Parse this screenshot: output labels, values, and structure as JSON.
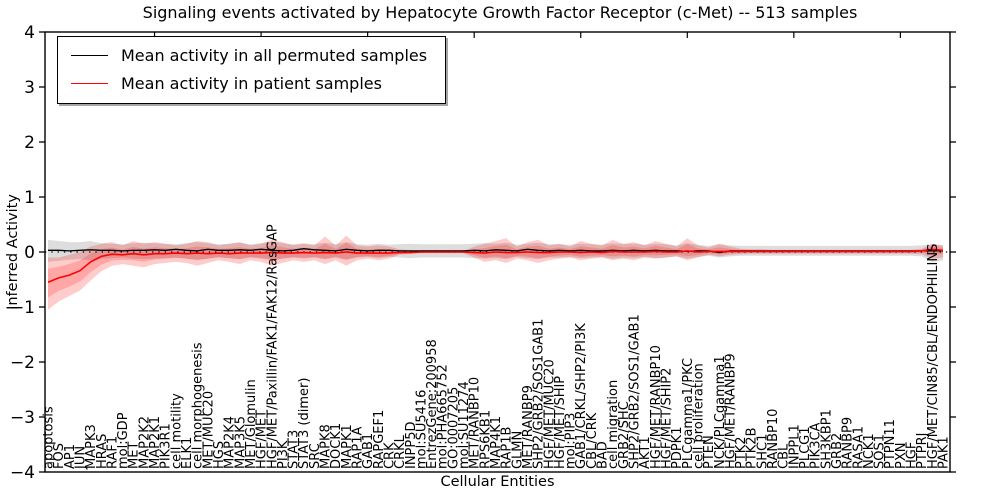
{
  "chart_data": {
    "type": "line",
    "title": "Signaling events activated by Hepatocyte Growth Factor Receptor (c-Met) -- 513 samples",
    "xlabel": "Cellular Entities",
    "ylabel": "Inferred Activity",
    "ylim": [
      -4,
      4
    ],
    "yticks": [
      "4",
      "3",
      "2",
      "1",
      "0",
      "−1",
      "−2",
      "−3",
      "−4"
    ],
    "grid": false,
    "legend_position": "upper left",
    "legend": [
      {
        "label": "Mean activity in all permuted samples",
        "color": "#000000"
      },
      {
        "label": "Mean activity in patient samples",
        "color": "#ff0000"
      }
    ],
    "zero_line": {
      "style": "dotted",
      "color": "#000000",
      "y": 0
    },
    "categories": [
      "apoptosis",
      "FOS",
      "AP1",
      "JUN",
      "MAPK3",
      "HRAS",
      "RAF1",
      "mol:GDP",
      "MET",
      "MAP2K2",
      "MAP2K1",
      "PIK3R1",
      "cell motility",
      "ELK1",
      "cell morphogenesis",
      "MET/MUC20",
      "HGS",
      "MAP2K4",
      "MAP3K5",
      "MET/Glomulin",
      "HGF/MET",
      "HGF/MET/Paxillin/FAK1/FAK12/RasGAP",
      "PI3K",
      "STAT3",
      "STAT3 (dimer)",
      "SRC",
      "MAPK8",
      "DOCK1",
      "MAPK1",
      "RAP1A",
      "GAB1",
      "RAPGEF1",
      "CRK",
      "CRKL",
      "INPP5D",
      "mol:SU5416",
      "EntrezGene:200958",
      "mol:PHA665752",
      "GO:0007205",
      "mol:SU11274",
      "MET/RANBP10",
      "RPS6KB1",
      "MAP4K1",
      "RAP1B",
      "GLMN",
      "MET/RANBP9",
      "SHP2/GRB2/SOS1GAB1",
      "HGF/MET/MUC20",
      "HGF/MET/SHIP",
      "mol:PIP3",
      "GAB1/CRKL/SHP2/PI3K",
      "CBL/CRK",
      "BAD",
      "cell migration",
      "GRB2/SHC",
      "SHP2/GRB2/SOS1/GAB1",
      "AKT1",
      "HGF/MET/RANBP10",
      "HGF/MET/SHIP2",
      "PDPK1",
      "PLCgamma1/PKC",
      "cell proliferation",
      "PTEN",
      "NCK/PLCgamma1",
      "HGF/MET/RANBP9",
      "PTK2",
      "PTK2B",
      "SHC1",
      "RANBP10",
      "CBL",
      "INPPL1",
      "PLCG1",
      "PIK3CA",
      "SH3KBP1",
      "GRB2",
      "RANBP9",
      "RASA1",
      "NCK1",
      "SOS1",
      "PTPN11",
      "PXN",
      "HGF",
      "PTPRJ",
      "HGF/MET/CIN85/CBL/ENDOPHILINS",
      "PAK1"
    ],
    "series": [
      {
        "name": "Mean activity in all permuted samples",
        "color": "#000000",
        "values": [
          0.03,
          0.03,
          0.02,
          0.03,
          0.04,
          0.03,
          0.03,
          0.02,
          0.03,
          0.03,
          0.04,
          0.03,
          0.05,
          0.03,
          0.02,
          0.05,
          0.03,
          0.03,
          0.04,
          0.03,
          0.05,
          0.03,
          0.02,
          0.03,
          0.06,
          0.04,
          0.03,
          0.02,
          0.05,
          0.03,
          0.02,
          0.03,
          0.03,
          0.02,
          0.02,
          0.02,
          0.02,
          0.02,
          0.02,
          0.02,
          0.03,
          0.02,
          0.04,
          0.03,
          0.02,
          0.05,
          0.03,
          0.02,
          0.03,
          0.02,
          0.03,
          0.02,
          0.02,
          0.03,
          0.02,
          0.03,
          0.02,
          0.03,
          0.02,
          0.02,
          0.01,
          0.02,
          0.02,
          -0.01,
          0.02,
          0.02,
          0.02,
          0.02,
          0.02,
          0.02,
          0.02,
          0.02,
          0.02,
          0.02,
          0.02,
          0.02,
          0.02,
          0.02,
          0.02,
          0.02,
          0.02,
          0.02,
          0.02,
          0.02,
          0.02
        ]
      },
      {
        "name": "Mean activity in patient samples",
        "color": "#ff0000",
        "values": [
          -0.55,
          -0.47,
          -0.42,
          -0.34,
          -0.18,
          -0.08,
          -0.04,
          -0.05,
          -0.03,
          -0.05,
          -0.03,
          -0.03,
          -0.02,
          -0.03,
          -0.02,
          -0.03,
          -0.02,
          -0.03,
          -0.02,
          -0.02,
          -0.02,
          -0.01,
          -0.02,
          -0.02,
          -0.01,
          -0.02,
          -0.01,
          -0.02,
          0.0,
          -0.02,
          -0.02,
          -0.02,
          -0.02,
          -0.01,
          -0.01,
          0.0,
          0.0,
          0.0,
          0.0,
          0.0,
          -0.01,
          -0.02,
          0.0,
          -0.01,
          -0.01,
          0.0,
          -0.01,
          -0.01,
          0.0,
          0.0,
          -0.01,
          0.0,
          -0.01,
          0.01,
          0.0,
          0.0,
          0.0,
          0.01,
          0.0,
          0.0,
          0.02,
          0.0,
          0.01,
          0.01,
          0.01,
          0.01,
          0.01,
          0.01,
          0.01,
          0.01,
          0.01,
          0.01,
          0.01,
          0.01,
          0.01,
          0.01,
          0.01,
          0.01,
          0.01,
          0.01,
          0.01,
          0.01,
          0.02,
          0.05,
          0.03
        ]
      }
    ],
    "bands": [
      {
        "series": "Mean activity in all permuted samples",
        "color": "#aaaaaa",
        "alpha": 0.4,
        "lower": [
          -0.18,
          -0.16,
          -0.14,
          -0.13,
          -0.15,
          -0.12,
          -0.11,
          -0.1,
          -0.12,
          -0.13,
          -0.12,
          -0.11,
          -0.1,
          -0.12,
          -0.14,
          -0.12,
          -0.1,
          -0.11,
          -0.13,
          -0.1,
          -0.12,
          -0.15,
          -0.12,
          -0.1,
          -0.12,
          -0.1,
          -0.13,
          -0.1,
          -0.14,
          -0.1,
          -0.09,
          -0.11,
          -0.09,
          -0.1,
          -0.11,
          -0.1,
          -0.1,
          -0.1,
          -0.1,
          -0.1,
          -0.11,
          -0.12,
          -0.11,
          -0.13,
          -0.09,
          -0.11,
          -0.13,
          -0.1,
          -0.1,
          -0.09,
          -0.11,
          -0.1,
          -0.09,
          -0.12,
          -0.1,
          -0.11,
          -0.09,
          -0.11,
          -0.1,
          -0.08,
          -0.12,
          -0.09,
          -0.07,
          -0.1,
          -0.08,
          -0.07,
          -0.07,
          -0.07,
          -0.07,
          -0.07,
          -0.07,
          -0.07,
          -0.07,
          -0.07,
          -0.07,
          -0.07,
          -0.07,
          -0.07,
          -0.07,
          -0.07,
          -0.07,
          -0.07,
          -0.08,
          -0.18,
          -0.15
        ],
        "upper": [
          0.22,
          0.2,
          0.18,
          0.18,
          0.2,
          0.16,
          0.15,
          0.14,
          0.16,
          0.17,
          0.16,
          0.15,
          0.14,
          0.16,
          0.18,
          0.16,
          0.14,
          0.15,
          0.17,
          0.14,
          0.16,
          0.19,
          0.16,
          0.14,
          0.16,
          0.14,
          0.17,
          0.14,
          0.18,
          0.14,
          0.13,
          0.15,
          0.13,
          0.14,
          0.15,
          0.14,
          0.14,
          0.14,
          0.14,
          0.14,
          0.15,
          0.16,
          0.15,
          0.17,
          0.13,
          0.15,
          0.17,
          0.14,
          0.14,
          0.13,
          0.15,
          0.14,
          0.13,
          0.16,
          0.14,
          0.15,
          0.13,
          0.15,
          0.14,
          0.12,
          0.16,
          0.13,
          0.11,
          0.14,
          0.12,
          0.11,
          0.11,
          0.11,
          0.11,
          0.11,
          0.11,
          0.11,
          0.11,
          0.11,
          0.11,
          0.11,
          0.11,
          0.11,
          0.11,
          0.11,
          0.11,
          0.11,
          0.12,
          0.14,
          0.12
        ]
      },
      {
        "series": "Mean activity in patient samples",
        "color": "#ff0000",
        "alpha": 0.2,
        "lower": [
          -1.05,
          -0.9,
          -0.8,
          -0.7,
          -0.52,
          -0.35,
          -0.25,
          -0.22,
          -0.25,
          -0.28,
          -0.22,
          -0.2,
          -0.18,
          -0.2,
          -0.25,
          -0.2,
          -0.15,
          -0.18,
          -0.22,
          -0.15,
          -0.18,
          -0.25,
          -0.2,
          -0.15,
          -0.18,
          -0.15,
          -0.22,
          -0.15,
          -0.25,
          -0.15,
          -0.12,
          -0.15,
          -0.12,
          -0.05,
          -0.03,
          -0.02,
          -0.02,
          -0.02,
          -0.02,
          -0.02,
          -0.1,
          -0.18,
          -0.15,
          -0.2,
          -0.12,
          -0.15,
          -0.2,
          -0.15,
          -0.12,
          -0.1,
          -0.15,
          -0.12,
          -0.1,
          -0.15,
          -0.12,
          -0.15,
          -0.1,
          -0.12,
          -0.1,
          -0.08,
          -0.15,
          -0.1,
          -0.05,
          -0.08,
          -0.05,
          -0.04,
          -0.03,
          -0.03,
          -0.03,
          -0.03,
          -0.03,
          -0.03,
          -0.03,
          -0.03,
          -0.03,
          -0.03,
          -0.03,
          -0.03,
          -0.03,
          -0.03,
          -0.03,
          -0.03,
          -0.04,
          -0.12,
          -0.1
        ],
        "upper": [
          -0.1,
          -0.1,
          -0.05,
          0.0,
          0.1,
          0.15,
          0.18,
          0.12,
          0.2,
          0.15,
          0.18,
          0.15,
          0.12,
          0.15,
          0.2,
          0.18,
          0.12,
          0.15,
          0.18,
          0.12,
          0.15,
          0.22,
          0.18,
          0.12,
          0.15,
          0.12,
          0.28,
          0.12,
          0.3,
          0.12,
          0.1,
          0.12,
          0.1,
          0.05,
          0.03,
          0.02,
          0.02,
          0.02,
          0.02,
          0.02,
          0.1,
          0.15,
          0.2,
          0.25,
          0.1,
          0.18,
          0.22,
          0.12,
          0.15,
          0.1,
          0.2,
          0.15,
          0.12,
          0.22,
          0.15,
          0.18,
          0.12,
          0.2,
          0.15,
          0.1,
          0.25,
          0.12,
          0.08,
          0.15,
          0.1,
          0.06,
          0.05,
          0.05,
          0.04,
          0.04,
          0.04,
          0.04,
          0.04,
          0.04,
          0.04,
          0.04,
          0.04,
          0.04,
          0.04,
          0.04,
          0.04,
          0.04,
          0.06,
          0.15,
          0.12
        ]
      }
    ]
  }
}
